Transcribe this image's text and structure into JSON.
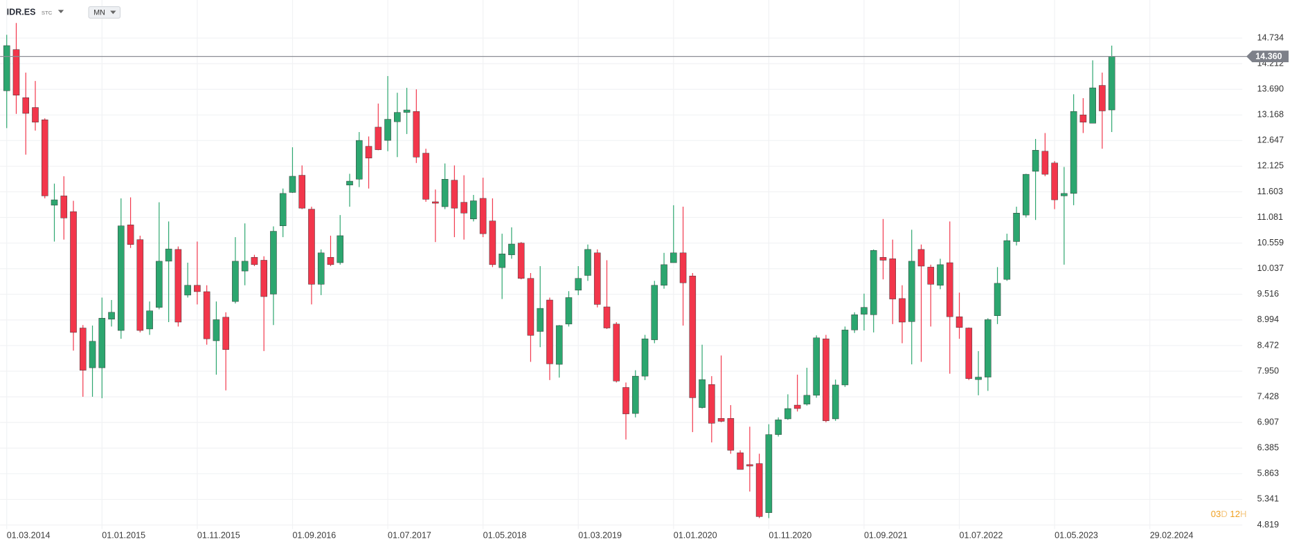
{
  "chart_data": {
    "type": "candlestick",
    "title": "IDR.ES",
    "exchange": "STC",
    "interval": "MN",
    "up_color": "#2ca66f",
    "down_color": "#f2364b",
    "grid": true,
    "last_price": {
      "value": 14.36,
      "label": "14.360"
    },
    "countdown": {
      "days": "03",
      "day_unit": "D",
      "hours": "12",
      "hour_unit": "H"
    },
    "ylim": [
      4.735,
      15.172
    ],
    "yticks": [
      14.734,
      14.212,
      {
        "value": 13.69,
        "label": "13.690"
      },
      13.168,
      12.647,
      12.125,
      11.603,
      11.081,
      10.559,
      10.037,
      9.516,
      8.994,
      8.472,
      {
        "value": 7.95,
        "label": "7.950"
      },
      7.428,
      6.907,
      6.385,
      5.863,
      5.341,
      4.819
    ],
    "xlim": [
      -0.7,
      129.7
    ],
    "xticks": [
      {
        "value": 0,
        "label": "01.03.2014"
      },
      {
        "value": 10,
        "label": "01.01.2015"
      },
      {
        "value": 20,
        "label": "01.11.2015"
      },
      {
        "value": 30,
        "label": "01.09.2016"
      },
      {
        "value": 40,
        "label": "01.07.2017"
      },
      {
        "value": 50,
        "label": "01.05.2018"
      },
      {
        "value": 60,
        "label": "01.03.2019"
      },
      {
        "value": 70,
        "label": "01.01.2020"
      },
      {
        "value": 80,
        "label": "01.11.2020"
      },
      {
        "value": 90,
        "label": "01.09.2021"
      },
      {
        "value": 100,
        "label": "01.07.2022"
      },
      {
        "value": 110,
        "label": "01.05.2023"
      },
      {
        "value": 120,
        "label": "29.02.2024"
      }
    ],
    "open": [
      13.66,
      14.5,
      13.52,
      13.32,
      13.07,
      11.33,
      11.52,
      11.2,
      8.83,
      8.02,
      8.02,
      9.01,
      8.78,
      10.93,
      10.63,
      8.81,
      9.25,
      10.19,
      10.43,
      9.5,
      9.7,
      9.57,
      8.57,
      9.05,
      9.37,
      9.99,
      10.27,
      10.21,
      9.52,
      10.91,
      11.59,
      11.94,
      11.25,
      9.72,
      10.27,
      10.16,
      11.74,
      11.86,
      12.53,
      12.92,
      12.65,
      13.03,
      13.22,
      13.24,
      12.39,
      11.4,
      11.3,
      11.84,
      11.39,
      11.05,
      11.47,
      11.01,
      10.06,
      10.32,
      10.56,
      9.84,
      8.76,
      9.4,
      8.09,
      8.91,
      9.6,
      9.9,
      10.36,
      9.26,
      8.91,
      7.62,
      7.09,
      7.85,
      8.59,
      9.7,
      10.16,
      10.36,
      9.89,
      7.21,
      7.68,
      6.99,
      6.99,
      6.29,
      6.05,
      6.07,
      5.07,
      6.66,
      6.98,
      7.26,
      7.28,
      7.46,
      8.61,
      6.98,
      7.67,
      8.79,
      9.11,
      9.1,
      10.27,
      10.24,
      9.43,
      8.96,
      10.43,
      10.07,
      9.7,
      10.16,
      9.06,
      8.83,
      7.78,
      7.83,
      9.08,
      9.82,
      10.59,
      11.13,
      12.02,
      12.43,
      12.19,
      11.52,
      11.57,
      13.17,
      13.0,
      13.77,
      13.27
    ],
    "high": [
      14.8,
      15.04,
      14.03,
      13.86,
      13.1,
      11.77,
      11.92,
      11.42,
      8.89,
      8.88,
      9.45,
      9.4,
      11.47,
      11.49,
      10.71,
      9.37,
      11.39,
      11.0,
      10.49,
      10.16,
      10.59,
      9.7,
      9.37,
      9.15,
      10.68,
      10.96,
      10.32,
      10.29,
      10.9,
      11.67,
      12.51,
      12.14,
      11.3,
      10.43,
      10.71,
      11.13,
      11.97,
      12.82,
      12.73,
      13.4,
      13.96,
      13.62,
      13.72,
      13.69,
      12.48,
      11.65,
      12.18,
      12.14,
      11.94,
      11.54,
      11.89,
      11.47,
      10.75,
      10.88,
      10.58,
      9.95,
      10.09,
      9.45,
      8.89,
      9.58,
      10.09,
      10.53,
      10.43,
      10.21,
      8.95,
      7.72,
      7.97,
      8.69,
      9.79,
      10.36,
      11.33,
      11.3,
      9.95,
      8.49,
      7.85,
      8.27,
      7.26,
      6.34,
      6.82,
      6.27,
      6.87,
      7.01,
      7.48,
      7.88,
      8.02,
      8.68,
      8.69,
      7.78,
      8.86,
      9.15,
      9.53,
      10.43,
      11.05,
      10.63,
      9.7,
      10.83,
      10.53,
      10.12,
      10.24,
      11.0,
      9.55,
      8.84,
      8.36,
      9.03,
      10.07,
      10.75,
      11.3,
      11.97,
      12.68,
      12.8,
      12.23,
      12.11,
      13.59,
      13.51,
      14.28,
      14.03,
      14.58
    ],
    "low": [
      12.9,
      13.19,
      12.36,
      12.85,
      11.47,
      10.59,
      10.63,
      8.37,
      7.43,
      7.43,
      7.4,
      8.86,
      8.61,
      10.46,
      8.74,
      8.69,
      9.21,
      8.95,
      8.86,
      9.45,
      9.31,
      8.49,
      7.88,
      7.56,
      9.33,
      9.7,
      10.09,
      8.36,
      8.89,
      10.68,
      11.58,
      11.25,
      9.31,
      9.5,
      10.09,
      10.12,
      11.3,
      11.7,
      11.67,
      12.45,
      12.43,
      12.31,
      12.78,
      12.19,
      11.4,
      10.58,
      11.25,
      10.68,
      10.63,
      11.0,
      10.68,
      10.07,
      9.42,
      10.24,
      9.82,
      8.14,
      8.44,
      7.77,
      7.82,
      8.86,
      9.5,
      9.79,
      9.25,
      8.81,
      7.72,
      6.56,
      7.01,
      7.77,
      8.52,
      9.63,
      10.16,
      8.88,
      6.71,
      7.19,
      6.5,
      6.91,
      6.27,
      5.95,
      5.5,
      4.96,
      4.96,
      6.62,
      6.96,
      7.13,
      7.25,
      7.41,
      6.91,
      6.94,
      7.63,
      8.73,
      8.78,
      8.74,
      9.82,
      8.91,
      8.52,
      8.09,
      8.14,
      8.86,
      9.62,
      7.9,
      8.61,
      7.77,
      7.46,
      7.55,
      8.91,
      9.79,
      10.51,
      11.08,
      11.03,
      11.92,
      11.25,
      10.12,
      11.33,
      12.8,
      13.0,
      12.48,
      12.82
    ],
    "close": [
      14.58,
      13.57,
      13.2,
      13.02,
      11.52,
      11.44,
      11.07,
      8.74,
      7.97,
      8.56,
      9.03,
      9.15,
      10.91,
      10.53,
      8.78,
      9.18,
      10.19,
      10.44,
      8.95,
      9.7,
      9.57,
      8.61,
      9.0,
      8.39,
      10.19,
      10.19,
      10.12,
      9.47,
      10.8,
      11.57,
      11.92,
      11.27,
      9.72,
      10.36,
      10.12,
      10.71,
      11.82,
      12.65,
      12.29,
      12.46,
      13.08,
      13.22,
      13.27,
      12.31,
      11.45,
      11.37,
      11.86,
      11.27,
      11.17,
      11.42,
      10.75,
      10.12,
      10.34,
      10.54,
      9.84,
      8.68,
      9.23,
      8.1,
      8.88,
      9.45,
      9.84,
      10.43,
      9.31,
      8.83,
      7.75,
      7.08,
      7.85,
      8.61,
      9.7,
      10.12,
      10.36,
      9.75,
      7.41,
      7.78,
      6.89,
      6.93,
      6.34,
      5.95,
      6.02,
      4.99,
      6.66,
      6.96,
      7.19,
      7.19,
      7.46,
      8.63,
      6.94,
      7.67,
      8.79,
      9.1,
      9.25,
      10.41,
      10.21,
      9.42,
      8.95,
      10.19,
      10.09,
      9.72,
      10.12,
      9.06,
      8.84,
      7.8,
      7.83,
      9.0,
      9.74,
      10.61,
      11.17,
      11.96,
      12.45,
      11.96,
      11.44,
      11.57,
      13.24,
      13.02,
      13.72,
      13.25,
      14.36
    ]
  }
}
